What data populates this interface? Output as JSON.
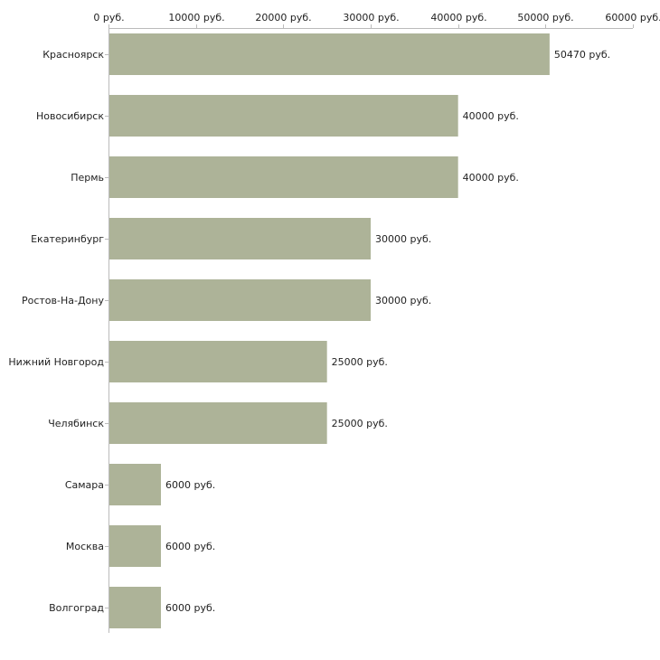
{
  "chart_data": {
    "type": "bar",
    "orientation": "horizontal",
    "title": "",
    "xlabel": "",
    "ylabel": "",
    "categories": [
      "Красноярск",
      "Новосибирск",
      "Пермь",
      "Екатеринбург",
      "Ростов-На-Дону",
      "Нижний Новгород",
      "Челябинск",
      "Самара",
      "Москва",
      "Волгоград"
    ],
    "values": [
      50470,
      40000,
      40000,
      30000,
      30000,
      25000,
      25000,
      6000,
      6000,
      6000
    ],
    "value_labels": [
      "50470 руб.",
      "40000 руб.",
      "40000 руб.",
      "30000 руб.",
      "30000 руб.",
      "25000 руб.",
      "25000 руб.",
      "6000 руб.",
      "6000 руб.",
      "6000 руб."
    ],
    "xlim": [
      0,
      60000
    ],
    "x_ticks": [
      0,
      10000,
      20000,
      30000,
      40000,
      50000,
      60000
    ],
    "x_tick_labels": [
      "0 руб.",
      "10000 руб.",
      "20000 руб.",
      "30000 руб.",
      "40000 руб.",
      "50000 руб.",
      "60000 руб."
    ],
    "axis_position": "top",
    "grid": false,
    "bar_color": "#adb398",
    "axis_color": "#bbbbbb"
  }
}
